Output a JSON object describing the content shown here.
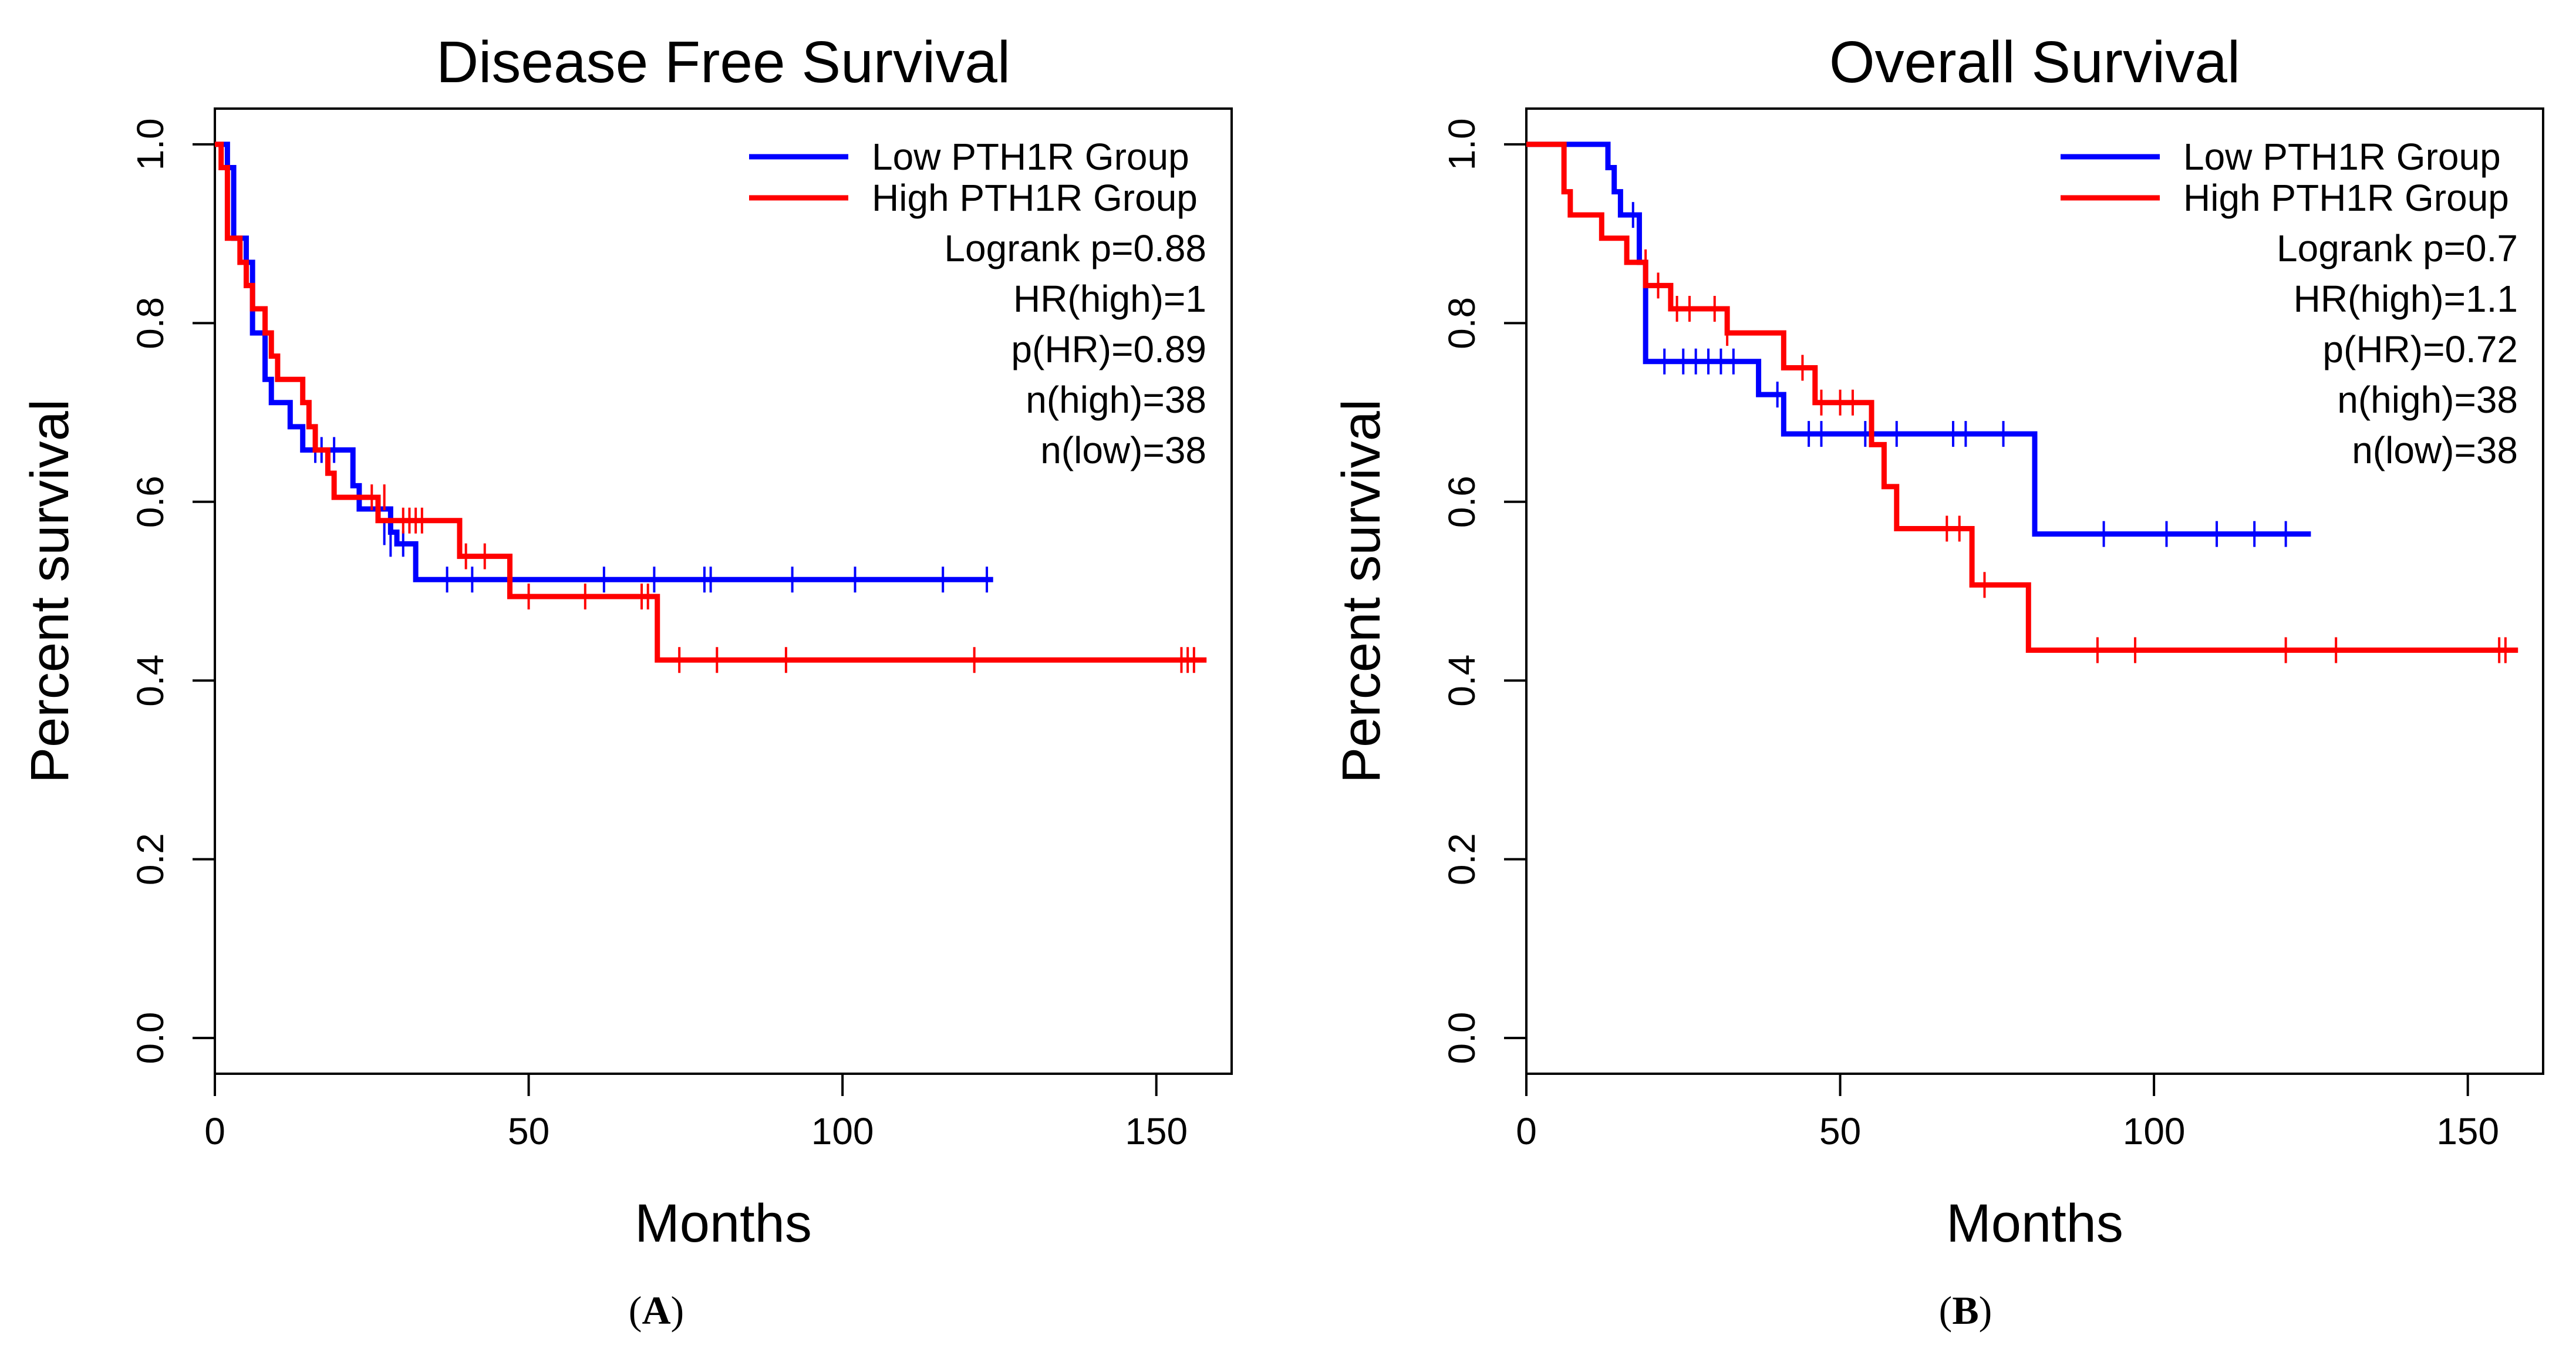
{
  "chart_data": [
    {
      "type": "line",
      "panel_label": "A",
      "title": "Disease Free Survival",
      "xlabel": "Months",
      "ylabel": "Percent survival",
      "xlim": [
        0,
        162
      ],
      "ylim": [
        -0.04,
        1.04
      ],
      "xticks": [
        0,
        50,
        100,
        150
      ],
      "xtick_labels": [
        "0",
        "50",
        "100",
        "150"
      ],
      "yticks": [
        0.0,
        0.2,
        0.4,
        0.6,
        0.8,
        1.0
      ],
      "ytick_labels": [
        "0.0",
        "0.2",
        "0.4",
        "0.6",
        "0.8",
        "1.0"
      ],
      "legend_position": "top-right",
      "stats": [
        "Logrank p=0.88",
        "HR(high)=1",
        "p(HR)=0.89",
        "n(high)=38",
        "n(low)=38"
      ],
      "series": [
        {
          "name": "Low PTH1R Group",
          "color": "#0000ff",
          "steps": [
            [
              0,
              1.0
            ],
            [
              2,
              0.974
            ],
            [
              3,
              0.895
            ],
            [
              5,
              0.868
            ],
            [
              6,
              0.789
            ],
            [
              8,
              0.737
            ],
            [
              9,
              0.711
            ],
            [
              12,
              0.684
            ],
            [
              14,
              0.658
            ],
            [
              18,
              0.658
            ],
            [
              20,
              0.658
            ],
            [
              22,
              0.618
            ],
            [
              23,
              0.592
            ],
            [
              27,
              0.592
            ],
            [
              28,
              0.566
            ],
            [
              29,
              0.553
            ],
            [
              32,
              0.513
            ],
            [
              124,
              0.513
            ]
          ],
          "censored": [
            [
              16,
              0.658
            ],
            [
              17,
              0.658
            ],
            [
              19,
              0.658
            ],
            [
              27,
              0.566
            ],
            [
              28,
              0.553
            ],
            [
              30,
              0.553
            ],
            [
              37,
              0.513
            ],
            [
              41,
              0.513
            ],
            [
              62,
              0.513
            ],
            [
              70,
              0.513
            ],
            [
              78,
              0.513
            ],
            [
              79,
              0.513
            ],
            [
              92,
              0.513
            ],
            [
              102,
              0.513
            ],
            [
              116,
              0.513
            ],
            [
              123,
              0.513
            ]
          ]
        },
        {
          "name": "High PTH1R Group",
          "color": "#ff0000",
          "steps": [
            [
              0,
              1.0
            ],
            [
              1,
              0.974
            ],
            [
              2,
              0.895
            ],
            [
              4,
              0.868
            ],
            [
              5,
              0.842
            ],
            [
              6,
              0.816
            ],
            [
              8,
              0.789
            ],
            [
              9,
              0.763
            ],
            [
              10,
              0.737
            ],
            [
              14,
              0.711
            ],
            [
              15,
              0.684
            ],
            [
              16,
              0.658
            ],
            [
              18,
              0.632
            ],
            [
              19,
              0.605
            ],
            [
              24,
              0.605
            ],
            [
              26,
              0.579
            ],
            [
              38,
              0.579
            ],
            [
              39,
              0.539
            ],
            [
              46,
              0.539
            ],
            [
              47,
              0.494
            ],
            [
              70,
              0.494
            ],
            [
              70.5,
              0.423
            ],
            [
              158,
              0.423
            ]
          ],
          "censored": [
            [
              25,
              0.605
            ],
            [
              27,
              0.605
            ],
            [
              30,
              0.579
            ],
            [
              31,
              0.579
            ],
            [
              32,
              0.579
            ],
            [
              33,
              0.579
            ],
            [
              40,
              0.539
            ],
            [
              43,
              0.539
            ],
            [
              50,
              0.494
            ],
            [
              59,
              0.494
            ],
            [
              68,
              0.494
            ],
            [
              69,
              0.494
            ],
            [
              74,
              0.423
            ],
            [
              80,
              0.423
            ],
            [
              91,
              0.423
            ],
            [
              121,
              0.423
            ],
            [
              154,
              0.423
            ],
            [
              155,
              0.423
            ],
            [
              156,
              0.423
            ]
          ]
        }
      ]
    },
    {
      "type": "line",
      "panel_label": "B",
      "title": "Overall Survival",
      "xlabel": "Months",
      "ylabel": "Percent survival",
      "xlim": [
        0,
        162
      ],
      "ylim": [
        -0.04,
        1.04
      ],
      "xticks": [
        0,
        50,
        100,
        150
      ],
      "xtick_labels": [
        "0",
        "50",
        "100",
        "150"
      ],
      "yticks": [
        0.0,
        0.2,
        0.4,
        0.6,
        0.8,
        1.0
      ],
      "ytick_labels": [
        "0.0",
        "0.2",
        "0.4",
        "0.6",
        "0.8",
        "1.0"
      ],
      "legend_position": "top-right",
      "stats": [
        "Logrank p=0.7",
        "HR(high)=1.1",
        "p(HR)=0.72",
        "n(high)=38",
        "n(low)=38"
      ],
      "series": [
        {
          "name": "Low PTH1R Group",
          "color": "#0000ff",
          "steps": [
            [
              0,
              1.0
            ],
            [
              12,
              1.0
            ],
            [
              13,
              0.974
            ],
            [
              14,
              0.947
            ],
            [
              15,
              0.921
            ],
            [
              16,
              0.921
            ],
            [
              18,
              0.868
            ],
            [
              19,
              0.757
            ],
            [
              36,
              0.757
            ],
            [
              37,
              0.72
            ],
            [
              40,
              0.72
            ],
            [
              41,
              0.676
            ],
            [
              80,
              0.676
            ],
            [
              81,
              0.564
            ],
            [
              125,
              0.564
            ]
          ],
          "censored": [
            [
              17,
              0.921
            ],
            [
              22,
              0.757
            ],
            [
              25,
              0.757
            ],
            [
              27,
              0.757
            ],
            [
              29,
              0.757
            ],
            [
              31,
              0.757
            ],
            [
              33,
              0.757
            ],
            [
              40,
              0.72
            ],
            [
              45,
              0.676
            ],
            [
              47,
              0.676
            ],
            [
              54,
              0.676
            ],
            [
              59,
              0.676
            ],
            [
              68,
              0.676
            ],
            [
              70,
              0.676
            ],
            [
              76,
              0.676
            ],
            [
              92,
              0.564
            ],
            [
              102,
              0.564
            ],
            [
              110,
              0.564
            ],
            [
              116,
              0.564
            ],
            [
              121,
              0.564
            ]
          ]
        },
        {
          "name": "High PTH1R Group",
          "color": "#ff0000",
          "steps": [
            [
              0,
              1.0
            ],
            [
              5,
              1.0
            ],
            [
              6,
              0.947
            ],
            [
              7,
              0.921
            ],
            [
              12,
              0.895
            ],
            [
              16,
              0.868
            ],
            [
              19,
              0.842
            ],
            [
              23,
              0.816
            ],
            [
              32,
              0.789
            ],
            [
              40,
              0.789
            ],
            [
              41,
              0.75
            ],
            [
              46,
              0.711
            ],
            [
              54,
              0.711
            ],
            [
              55,
              0.664
            ],
            [
              57,
              0.617
            ],
            [
              59,
              0.57
            ],
            [
              70,
              0.57
            ],
            [
              71,
              0.507
            ],
            [
              79,
              0.507
            ],
            [
              80,
              0.434
            ],
            [
              158,
              0.434
            ]
          ],
          "censored": [
            [
              19,
              0.868
            ],
            [
              21,
              0.842
            ],
            [
              24,
              0.816
            ],
            [
              26,
              0.816
            ],
            [
              30,
              0.816
            ],
            [
              32,
              0.789
            ],
            [
              44,
              0.75
            ],
            [
              47,
              0.711
            ],
            [
              50,
              0.711
            ],
            [
              52,
              0.711
            ],
            [
              67,
              0.57
            ],
            [
              69,
              0.57
            ],
            [
              73,
              0.507
            ],
            [
              91,
              0.434
            ],
            [
              97,
              0.434
            ],
            [
              121,
              0.434
            ],
            [
              129,
              0.434
            ],
            [
              155,
              0.434
            ],
            [
              156,
              0.434
            ]
          ]
        }
      ]
    }
  ]
}
